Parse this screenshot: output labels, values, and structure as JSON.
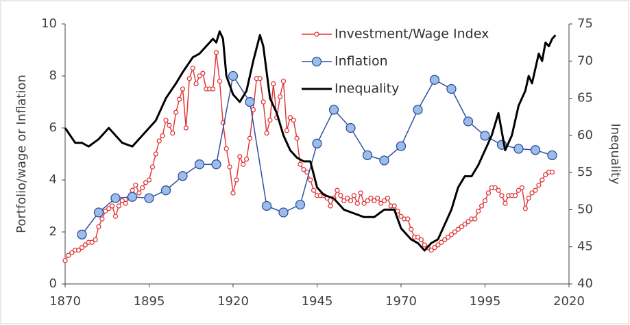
{
  "chart_data": {
    "type": "line",
    "y_label": "Portfolio/wage or Inflation",
    "y2_label": "Inequality",
    "xlim": [
      1870,
      2020
    ],
    "xticks": [
      1870,
      1895,
      1920,
      1945,
      1970,
      1995,
      2020
    ],
    "ylim": [
      0,
      10
    ],
    "yticks": [
      0,
      2,
      4,
      6,
      8,
      10
    ],
    "y2lim": [
      40,
      75
    ],
    "y2ticks": [
      40,
      45,
      50,
      55,
      60,
      65,
      70,
      75
    ],
    "grid": false,
    "legend": "top",
    "series": [
      {
        "name": "Investment/Wage Index",
        "color": "#e0393a",
        "marker": "small-open",
        "x": [
          1870,
          1871,
          1872,
          1873,
          1874,
          1875,
          1876,
          1877,
          1878,
          1879,
          1880,
          1881,
          1882,
          1883,
          1884,
          1885,
          1886,
          1887,
          1888,
          1889,
          1890,
          1891,
          1892,
          1893,
          1894,
          1895,
          1896,
          1897,
          1898,
          1899,
          1900,
          1901,
          1902,
          1903,
          1904,
          1905,
          1906,
          1907,
          1908,
          1909,
          1910,
          1911,
          1912,
          1913,
          1914,
          1915,
          1916,
          1917,
          1918,
          1919,
          1920,
          1921,
          1922,
          1923,
          1924,
          1925,
          1926,
          1927,
          1928,
          1929,
          1930,
          1931,
          1932,
          1933,
          1934,
          1935,
          1936,
          1937,
          1938,
          1939,
          1940,
          1941,
          1942,
          1943,
          1944,
          1945,
          1946,
          1947,
          1948,
          1949,
          1950,
          1951,
          1952,
          1953,
          1954,
          1955,
          1956,
          1957,
          1958,
          1959,
          1960,
          1961,
          1962,
          1963,
          1964,
          1965,
          1966,
          1967,
          1968,
          1969,
          1970,
          1971,
          1972,
          1973,
          1974,
          1975,
          1976,
          1977,
          1978,
          1979,
          1980,
          1981,
          1982,
          1983,
          1984,
          1985,
          1986,
          1987,
          1988,
          1989,
          1990,
          1991,
          1992,
          1993,
          1994,
          1995,
          1996,
          1997,
          1998,
          1999,
          2000,
          2001,
          2002,
          2003,
          2004,
          2005,
          2006,
          2007,
          2008,
          2009,
          2010,
          2011,
          2012,
          2013,
          2014,
          2015
        ],
        "values": [
          0.9,
          1.1,
          1.2,
          1.3,
          1.3,
          1.4,
          1.5,
          1.6,
          1.6,
          1.7,
          2.2,
          2.5,
          2.8,
          2.9,
          3.0,
          2.6,
          3.0,
          3.2,
          3.1,
          3.3,
          3.6,
          3.8,
          3.5,
          3.7,
          3.9,
          4.0,
          4.5,
          5.0,
          5.5,
          5.7,
          6.3,
          6.1,
          5.8,
          6.6,
          7.1,
          7.5,
          6.0,
          7.9,
          8.3,
          7.7,
          8.0,
          8.1,
          7.5,
          7.5,
          7.5,
          8.9,
          7.8,
          6.2,
          5.2,
          4.5,
          3.5,
          4.0,
          4.9,
          4.6,
          4.8,
          5.6,
          6.7,
          7.9,
          7.9,
          7.0,
          5.8,
          6.3,
          7.7,
          6.4,
          7.2,
          7.8,
          5.9,
          6.4,
          6.3,
          5.6,
          4.6,
          4.4,
          4.3,
          4.0,
          3.6,
          3.4,
          3.4,
          3.4,
          3.3,
          3.0,
          3.3,
          3.6,
          3.4,
          3.2,
          3.3,
          3.2,
          3.4,
          3.1,
          3.5,
          3.1,
          3.2,
          3.3,
          3.2,
          3.3,
          3.1,
          3.2,
          3.3,
          3.0,
          3.0,
          2.8,
          2.6,
          2.5,
          2.5,
          2.1,
          1.8,
          1.8,
          1.7,
          1.5,
          1.4,
          1.3,
          1.4,
          1.5,
          1.6,
          1.7,
          1.8,
          1.9,
          2.0,
          2.1,
          2.2,
          2.3,
          2.4,
          2.5,
          2.5,
          2.8,
          3.0,
          3.2,
          3.5,
          3.7,
          3.7,
          3.6,
          3.4,
          3.1,
          3.4,
          3.4,
          3.4,
          3.6,
          3.7,
          2.9,
          3.3,
          3.5,
          3.6,
          3.8,
          4.0,
          4.2,
          4.3,
          4.3
        ]
      },
      {
        "name": "Inflation",
        "color": "#2f4f9e",
        "marker": "large-filled",
        "x": [
          1875,
          1880,
          1885,
          1890,
          1895,
          1900,
          1905,
          1910,
          1915,
          1920,
          1925,
          1930,
          1935,
          1940,
          1945,
          1950,
          1955,
          1960,
          1965,
          1970,
          1975,
          1980,
          1985,
          1990,
          1995,
          2000,
          2005,
          2010,
          2015
        ],
        "values": [
          1.9,
          2.75,
          3.3,
          3.35,
          3.3,
          3.6,
          4.15,
          4.6,
          4.6,
          8.0,
          7.0,
          3.0,
          2.75,
          3.05,
          5.4,
          6.7,
          6.0,
          4.95,
          4.75,
          5.3,
          6.7,
          7.85,
          7.5,
          6.25,
          5.7,
          5.35,
          5.2,
          5.15,
          4.95
        ]
      },
      {
        "name": "Inequality",
        "color": "#000000",
        "marker": "none",
        "axis": "y2",
        "x": [
          1870,
          1873,
          1875,
          1877,
          1880,
          1883,
          1885,
          1887,
          1890,
          1893,
          1895,
          1897,
          1900,
          1903,
          1905,
          1908,
          1910,
          1912,
          1914,
          1915,
          1916,
          1917,
          1918,
          1920,
          1922,
          1924,
          1926,
          1928,
          1929,
          1931,
          1933,
          1935,
          1937,
          1939,
          1941,
          1943,
          1945,
          1947,
          1950,
          1953,
          1956,
          1959,
          1962,
          1965,
          1968,
          1970,
          1973,
          1975,
          1977,
          1979,
          1981,
          1983,
          1985,
          1987,
          1989,
          1991,
          1993,
          1995,
          1997,
          1999,
          2001,
          2003,
          2005,
          2007,
          2008,
          2009,
          2011,
          2012,
          2013,
          2014,
          2015,
          2016
        ],
        "values": [
          61,
          59,
          59,
          58.5,
          59.5,
          61,
          60,
          59,
          58.5,
          60,
          61,
          62,
          65,
          67,
          68.5,
          70.5,
          71,
          72,
          73,
          72.5,
          74,
          73,
          68,
          65.5,
          64.5,
          66,
          70,
          73.5,
          72,
          65,
          63,
          60,
          58,
          57,
          56.5,
          56.5,
          53,
          52,
          51.5,
          50,
          49.5,
          49,
          49,
          50,
          50,
          47.5,
          46,
          45.5,
          44.5,
          45.5,
          46,
          48,
          50,
          53,
          54.5,
          54.5,
          56,
          58,
          60,
          63,
          58,
          60,
          64,
          66,
          68,
          67,
          71,
          70,
          72.5,
          72,
          73,
          73.5
        ]
      }
    ]
  }
}
